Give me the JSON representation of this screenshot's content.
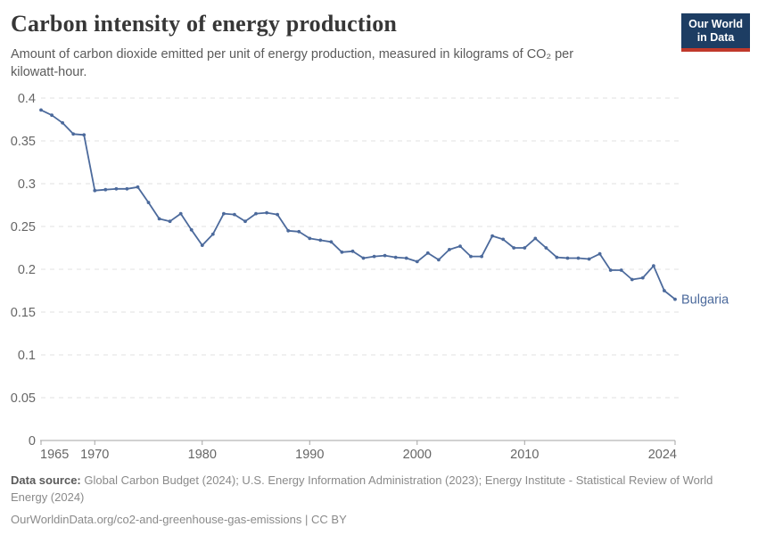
{
  "header": {
    "title": "Carbon intensity of energy production",
    "subtitle": "Amount of carbon dioxide emitted per unit of energy production, measured in kilograms of CO₂ per kilowatt-hour."
  },
  "logo": {
    "line1": "Our World",
    "line2": "in Data"
  },
  "chart_data": {
    "type": "line",
    "title": "Carbon intensity of energy production",
    "ylabel": "kilograms of CO₂ per kilowatt-hour",
    "xlim": [
      1965,
      2024
    ],
    "ylim": [
      0,
      0.4
    ],
    "x_step": 1,
    "grid": "horizontal-dashed",
    "legend_position": "end-of-line-label",
    "x_tick_years": [
      1965,
      1970,
      1980,
      1990,
      2000,
      2010,
      2024
    ],
    "y_tick_labels": [
      "0",
      "0.05",
      "0.1",
      "0.15",
      "0.2",
      "0.25",
      "0.3",
      "0.35",
      "0.4"
    ],
    "series": [
      {
        "name": "Bulgaria",
        "x_start": 1965,
        "values": [
          0.386,
          0.38,
          0.371,
          0.358,
          0.357,
          0.292,
          0.293,
          0.294,
          0.294,
          0.296,
          0.278,
          0.259,
          0.256,
          0.265,
          0.246,
          0.228,
          0.241,
          0.265,
          0.264,
          0.256,
          0.265,
          0.266,
          0.264,
          0.245,
          0.244,
          0.236,
          0.234,
          0.232,
          0.22,
          0.221,
          0.213,
          0.215,
          0.216,
          0.214,
          0.213,
          0.209,
          0.219,
          0.211,
          0.223,
          0.227,
          0.215,
          0.215,
          0.239,
          0.235,
          0.225,
          0.225,
          0.236,
          0.225,
          0.214,
          0.213,
          0.213,
          0.212,
          0.218,
          0.199,
          0.199,
          0.188,
          0.19,
          0.204,
          0.175,
          0.165
        ]
      }
    ]
  },
  "colors": {
    "line": "#4c6a9c",
    "grid": "#e0e0e0",
    "axis": "#a3a3a3",
    "tick_label": "#666666",
    "title": "#373737",
    "subtitle": "#5b5b5b",
    "footer": "#8a8a8a",
    "footer_bold": "#5a5a5a",
    "logo_bg": "#1d3d63",
    "logo_accent": "#c0392b",
    "logo_text": "#ffffff"
  },
  "footer": {
    "source_label": "Data source:",
    "source_text": "Global Carbon Budget (2024); U.S. Energy Information Administration (2023); Energy Institute - Statistical Review of World Energy (2024)",
    "citation": "OurWorldinData.org/co2-and-greenhouse-gas-emissions",
    "separator": "|",
    "license": "CC BY"
  }
}
